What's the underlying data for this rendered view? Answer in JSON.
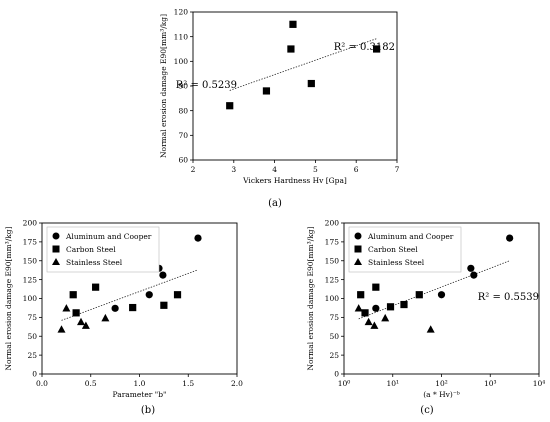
{
  "panels": [
    {
      "caption": "(a)"
    },
    {
      "caption": "(b)"
    },
    {
      "caption": "(c)"
    }
  ],
  "chart_data": [
    {
      "type": "scatter",
      "xlabel": "Vickers Hardness Hv [Gpa]",
      "ylabel": "Normal erosion damage E90[mm³/kg]",
      "xlim": [
        2,
        7
      ],
      "ylim": [
        60,
        120
      ],
      "xscale": "linear",
      "xticks": [
        "2",
        "3",
        "4",
        "5",
        "6",
        "7"
      ],
      "yticks": [
        "60",
        "70",
        "80",
        "90",
        "100",
        "110",
        "120"
      ],
      "grid": false,
      "legend": "none",
      "annotation": "R² = 0.3182",
      "series": [
        {
          "marker": "square",
          "points": [
            [
              2.9,
              82
            ],
            [
              3.8,
              88
            ],
            [
              4.4,
              105
            ],
            [
              4.45,
              115
            ],
            [
              4.9,
              91
            ],
            [
              6.5,
              105
            ]
          ]
        }
      ],
      "trendline": {
        "x": [
          2.9,
          6.5
        ],
        "y": [
          88.2,
          109.2
        ]
      }
    },
    {
      "type": "scatter",
      "xlabel": "Parameter \"b\"",
      "ylabel": "Normal erosion damage E90[mm³/kg]",
      "xlim": [
        0.0,
        2.0
      ],
      "ylim": [
        0,
        200
      ],
      "xscale": "linear",
      "xticks": [
        "0.0",
        "0.5",
        "1.0",
        "1.5",
        "2.0"
      ],
      "yticks": [
        "0",
        "25",
        "50",
        "75",
        "100",
        "125",
        "150",
        "175",
        "200"
      ],
      "grid": false,
      "legend": "top-left",
      "annotation": "R² = 0.5239",
      "series": [
        {
          "name": "Aluminum and Cooper",
          "marker": "circle",
          "points": [
            [
              0.75,
              87
            ],
            [
              1.1,
              105
            ],
            [
              1.2,
              140
            ],
            [
              1.24,
              131
            ],
            [
              1.6,
              180
            ]
          ]
        },
        {
          "name": "Carbon Steel",
          "marker": "square",
          "points": [
            [
              0.32,
              105
            ],
            [
              0.35,
              81
            ],
            [
              0.55,
              115
            ],
            [
              0.93,
              88
            ],
            [
              1.25,
              91
            ],
            [
              1.39,
              105
            ]
          ]
        },
        {
          "name": "Stainless Steel",
          "marker": "triangle",
          "points": [
            [
              0.2,
              59
            ],
            [
              0.25,
              87
            ],
            [
              0.4,
              69
            ],
            [
              0.45,
              64
            ],
            [
              0.65,
              74
            ]
          ]
        }
      ],
      "trendline": {
        "x": [
          0.2,
          1.6
        ],
        "y": [
          71,
          138
        ]
      }
    },
    {
      "type": "scatter",
      "xlabel": "(a * Hv)⁻ᵇ",
      "ylabel": "Normal erosion damage E90[mm³/kg]",
      "xlim": [
        1,
        10000
      ],
      "ylim": [
        0,
        200
      ],
      "xscale": "log",
      "xticks": [
        "10⁰",
        "10¹",
        "10²",
        "10³",
        "10⁴"
      ],
      "yticks": [
        "0",
        "25",
        "50",
        "75",
        "100",
        "125",
        "150",
        "175",
        "200"
      ],
      "grid": false,
      "legend": "top-left",
      "annotation": "R² = 0.5539",
      "series": [
        {
          "name": "Aluminum and Cooper",
          "marker": "circle",
          "points": [
            [
              4.5,
              87
            ],
            [
              100,
              105
            ],
            [
              400,
              140
            ],
            [
              460,
              131
            ],
            [
              2500,
              180
            ]
          ]
        },
        {
          "name": "Carbon Steel",
          "marker": "square",
          "points": [
            [
              2.2,
              105
            ],
            [
              2.7,
              81
            ],
            [
              4.5,
              115
            ],
            [
              9,
              89
            ],
            [
              17,
              92
            ],
            [
              35,
              105
            ]
          ]
        },
        {
          "name": "Stainless Steel",
          "marker": "triangle",
          "points": [
            [
              2,
              87
            ],
            [
              3.2,
              69
            ],
            [
              4.2,
              64
            ],
            [
              7,
              74
            ],
            [
              60,
              59
            ]
          ]
        }
      ],
      "trendline": {
        "x": [
          2,
          2500
        ],
        "y": [
          73,
          150
        ]
      }
    }
  ]
}
